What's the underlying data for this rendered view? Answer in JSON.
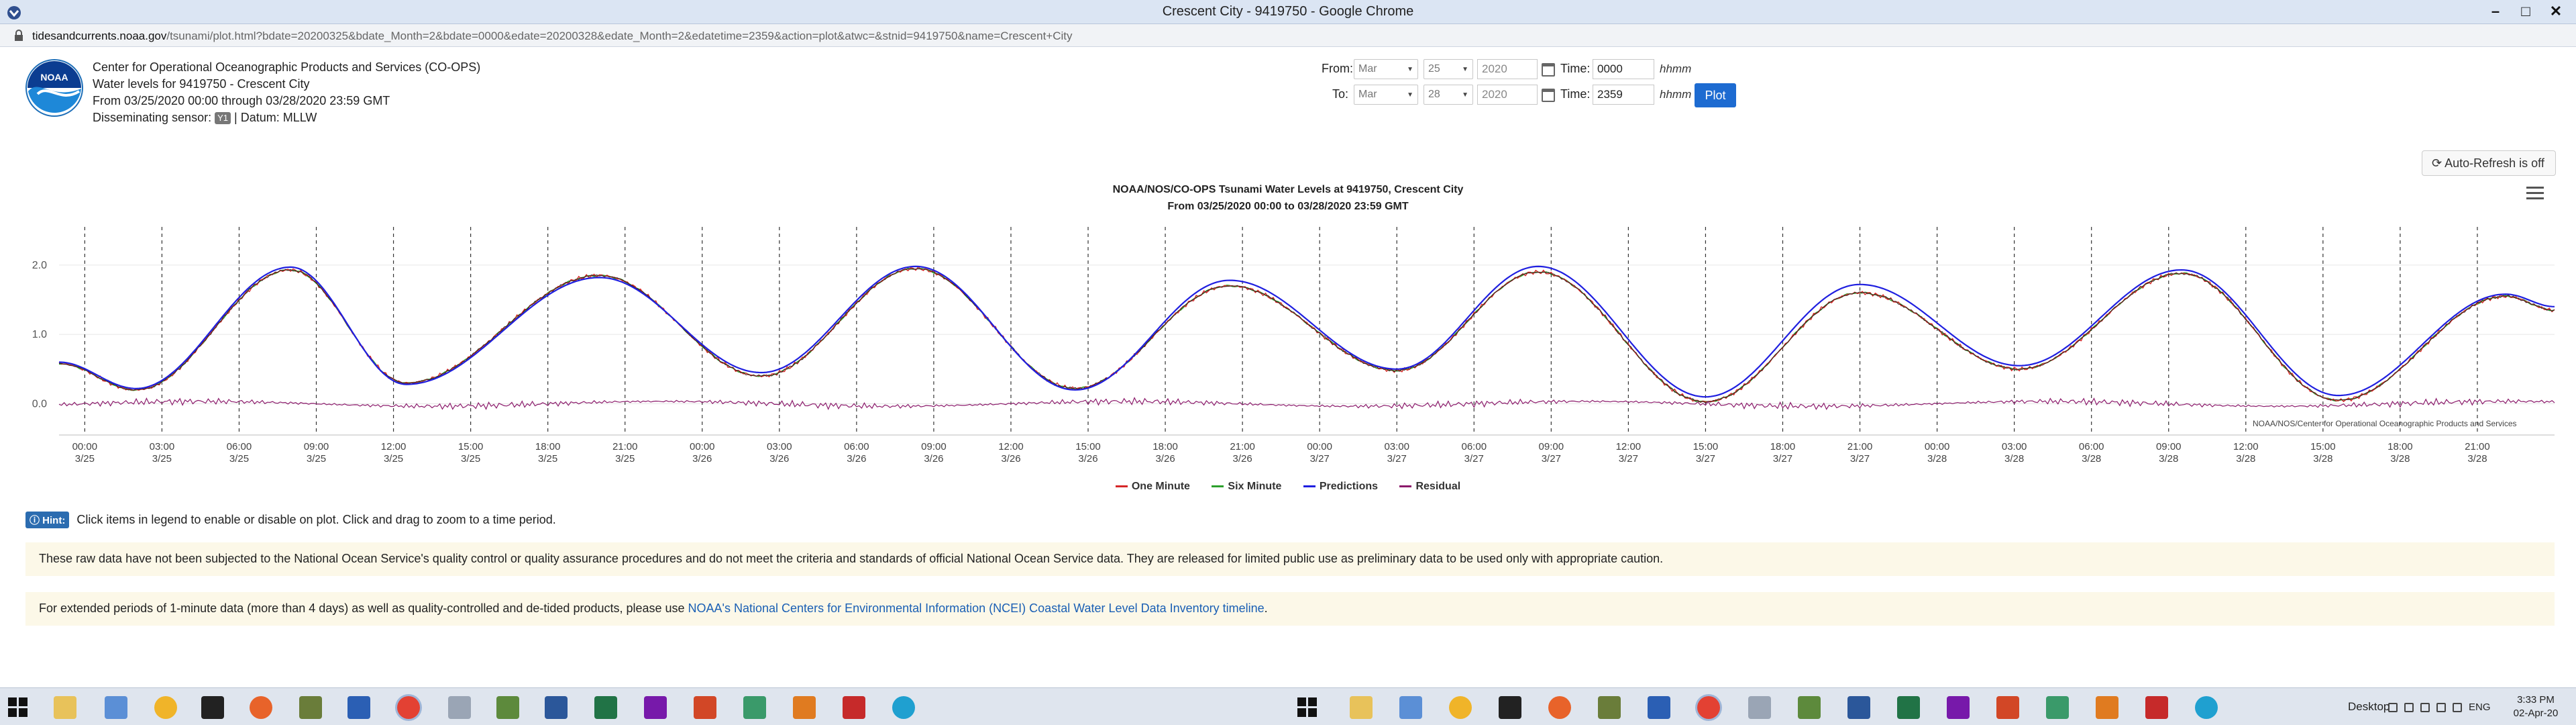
{
  "window": {
    "title": "Crescent City - 9419750 - Google Chrome"
  },
  "address": {
    "host": "tidesandcurrents.noaa.gov",
    "path": "/tsunami/plot.html?bdate=20200325&bdate_Month=2&bdate=0000&edate=20200328&edate_Month=2&edatetime=2359&action=plot&atwc=&stnid=9419750&name=Crescent+City"
  },
  "header": {
    "org": "Center for Operational Oceanographic Products and Services (CO-OPS)",
    "station_line": "Water levels for 9419750 - Crescent City",
    "range_line": "From 03/25/2020 00:00 through 03/28/2020 23:59 GMT",
    "sensor_prefix": "Disseminating sensor:",
    "sensor_code": "Y1",
    "datum_text": "| Datum: MLLW"
  },
  "controls": {
    "from_label": "From:",
    "to_label": "To:",
    "time_label": "Time:",
    "from_month": "Mar",
    "from_day": "25",
    "from_year": "2020",
    "from_time": "0000",
    "to_month": "Mar",
    "to_day": "28",
    "to_year": "2020",
    "to_time": "2359",
    "time_unit": "hhmm",
    "plot_label": "Plot",
    "autorefresh_label": "Auto-Refresh is off"
  },
  "chart_data": {
    "type": "line",
    "title": "NOAA/NOS/CO-OPS Tsunami Water Levels at 9419750, Crescent City",
    "subtitle": "From 03/25/2020 00:00 to 03/28/2020 23:59 GMT",
    "credit": "NOAA/NOS/Center for Operational Oceanographic Products and Services",
    "ylim": [
      -0.45,
      2.55
    ],
    "yticks": [
      "2.0",
      "1.0",
      "0.0"
    ],
    "ytick_values": [
      2.0,
      1.0,
      0.0
    ],
    "xlim_hours": [
      -1,
      96
    ],
    "xtick_hours": [
      0,
      3,
      6,
      9,
      12,
      15,
      18,
      21,
      24,
      27,
      30,
      33,
      36,
      39,
      42,
      45,
      48,
      51,
      54,
      57,
      60,
      63,
      66,
      69,
      72,
      75,
      78,
      81,
      84,
      87,
      90,
      93
    ],
    "xtick_times": [
      "00:00",
      "03:00",
      "06:00",
      "09:00",
      "12:00",
      "15:00",
      "18:00",
      "21:00",
      "00:00",
      "03:00",
      "06:00",
      "09:00",
      "12:00",
      "15:00",
      "18:00",
      "21:00",
      "00:00",
      "03:00",
      "06:00",
      "09:00",
      "12:00",
      "15:00",
      "18:00",
      "21:00",
      "00:00",
      "03:00",
      "06:00",
      "09:00",
      "12:00",
      "15:00",
      "18:00",
      "21:00"
    ],
    "xtick_dates": [
      "3/25",
      "3/25",
      "3/25",
      "3/25",
      "3/25",
      "3/25",
      "3/25",
      "3/25",
      "3/26",
      "3/26",
      "3/26",
      "3/26",
      "3/26",
      "3/26",
      "3/26",
      "3/26",
      "3/27",
      "3/27",
      "3/27",
      "3/27",
      "3/27",
      "3/27",
      "3/27",
      "3/27",
      "3/28",
      "3/28",
      "3/28",
      "3/28",
      "3/28",
      "3/28",
      "3/28",
      "3/28"
    ],
    "extrema": {
      "hours": [
        -1,
        2,
        8,
        12.5,
        20,
        26.3,
        32.3,
        38.5,
        44.5,
        51,
        56.5,
        63,
        69,
        75.2,
        81.5,
        87.6,
        94.1,
        96
      ],
      "predictions": [
        0.6,
        0.22,
        1.97,
        0.28,
        1.82,
        0.45,
        1.98,
        0.2,
        1.78,
        0.5,
        1.98,
        0.1,
        1.72,
        0.55,
        1.93,
        0.12,
        1.58,
        1.4
      ],
      "observed": [
        0.58,
        0.2,
        1.93,
        0.3,
        1.85,
        0.4,
        1.95,
        0.22,
        1.7,
        0.48,
        1.9,
        0.03,
        1.6,
        0.5,
        1.88,
        0.05,
        1.55,
        1.35
      ]
    },
    "residual_approx": 0.0,
    "series": [
      {
        "name": "One Minute",
        "color": "#d62728"
      },
      {
        "name": "Six Minute",
        "color": "#2ca02c"
      },
      {
        "name": "Predictions",
        "color": "#1f1fe0"
      },
      {
        "name": "Residual",
        "color": "#8b1a6b"
      }
    ],
    "grid": "dashed vertical lines at 3-hour ticks",
    "legend_position": "bottom-center"
  },
  "hint": {
    "badge": "Hint:",
    "text": "Click items in legend to enable or disable on plot. Click and drag to zoom to a time period."
  },
  "notices": {
    "disclaimer": "These raw data have not been subjected to the National Ocean Service's quality control or quality assurance procedures and do not meet the criteria and standards of official National Ocean Service data. They are released for limited public use as preliminary data to be used only with appropriate caution.",
    "extended_prefix": "For extended periods of 1-minute data (more than 4 days) as well as quality-controlled and de-tided products, please use ",
    "extended_link": "NOAA's National Centers for Environmental Information (NCEI) Coastal Water Level Data Inventory timeline",
    "extended_suffix": "."
  },
  "taskbar": {
    "desktop_label": "Desktop",
    "lang": "ENG",
    "time": "3:33 PM",
    "date": "02-Apr-20"
  },
  "colors": {
    "accent_blue": "#1d6bd1",
    "notice_bg": "#fcf8e8"
  }
}
